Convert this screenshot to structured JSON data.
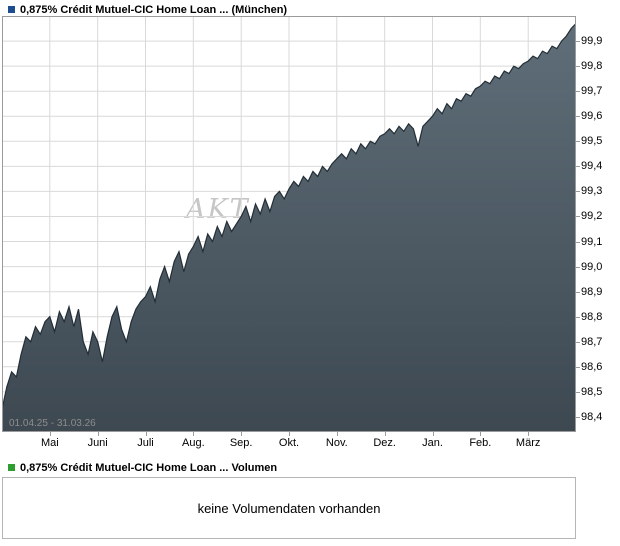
{
  "price_panel": {
    "legend_color": "#1c4d8f",
    "title": "0,875% Crédit Mutuel-CIC Home Loan ... (München)",
    "date_range": "01.04.25 - 31.03.26",
    "watermark": "AKT"
  },
  "volume_panel": {
    "legend_color": "#2f9e30",
    "title": "0,875% Crédit Mutuel-CIC Home Loan ... Volumen",
    "message": "keine Volumendaten vorhanden"
  },
  "chart_data": {
    "type": "area",
    "title": "0,875% Crédit Mutuel-CIC Home Loan ... (München)",
    "xlabel": "",
    "ylabel": "",
    "date_range": "01.04.25 - 31.03.26",
    "x_labels": [
      "Mai",
      "Juni",
      "Juli",
      "Aug.",
      "Sep.",
      "Okt.",
      "Nov.",
      "Dez.",
      "Jan.",
      "Feb.",
      "März"
    ],
    "x_months": 12,
    "ylim": [
      98.34,
      100.0
    ],
    "y_ticks": [
      98.4,
      98.5,
      98.6,
      98.7,
      98.8,
      98.9,
      99.0,
      99.1,
      99.2,
      99.3,
      99.4,
      99.5,
      99.6,
      99.7,
      99.8,
      99.9
    ],
    "y_tick_labels": [
      "98,4",
      "98,5",
      "98,6",
      "98,7",
      "98,8",
      "98,9",
      "99,0",
      "99,1",
      "99,2",
      "99,3",
      "99,4",
      "99,5",
      "99,6",
      "99,7",
      "99,8",
      "99,9"
    ],
    "grid": true,
    "legend": "none",
    "colors": {
      "area_top": "#5f6e79",
      "area_bottom": "#3d4851",
      "line": "#232e36"
    },
    "values": [
      98.43,
      98.52,
      98.58,
      98.56,
      98.65,
      98.72,
      98.7,
      98.76,
      98.73,
      98.78,
      98.8,
      98.74,
      98.82,
      98.78,
      98.84,
      98.76,
      98.83,
      98.7,
      98.65,
      98.74,
      98.7,
      98.62,
      98.72,
      98.8,
      98.84,
      98.75,
      98.7,
      98.78,
      98.83,
      98.86,
      98.88,
      98.92,
      98.86,
      98.95,
      99.0,
      98.94,
      99.02,
      99.06,
      98.98,
      99.05,
      99.08,
      99.12,
      99.06,
      99.13,
      99.1,
      99.16,
      99.12,
      99.18,
      99.14,
      99.17,
      99.2,
      99.24,
      99.18,
      99.25,
      99.21,
      99.27,
      99.22,
      99.28,
      99.3,
      99.27,
      99.31,
      99.34,
      99.32,
      99.36,
      99.34,
      99.38,
      99.36,
      99.4,
      99.38,
      99.41,
      99.43,
      99.45,
      99.43,
      99.47,
      99.45,
      99.49,
      99.47,
      99.5,
      99.49,
      99.52,
      99.53,
      99.55,
      99.53,
      99.56,
      99.54,
      99.57,
      99.55,
      99.48,
      99.56,
      99.58,
      99.6,
      99.63,
      99.61,
      99.65,
      99.63,
      99.67,
      99.66,
      99.69,
      99.68,
      99.71,
      99.72,
      99.74,
      99.73,
      99.76,
      99.75,
      99.78,
      99.77,
      99.8,
      99.79,
      99.81,
      99.82,
      99.84,
      99.83,
      99.86,
      99.85,
      99.88,
      99.87,
      99.9,
      99.92,
      99.95,
      99.97
    ]
  }
}
